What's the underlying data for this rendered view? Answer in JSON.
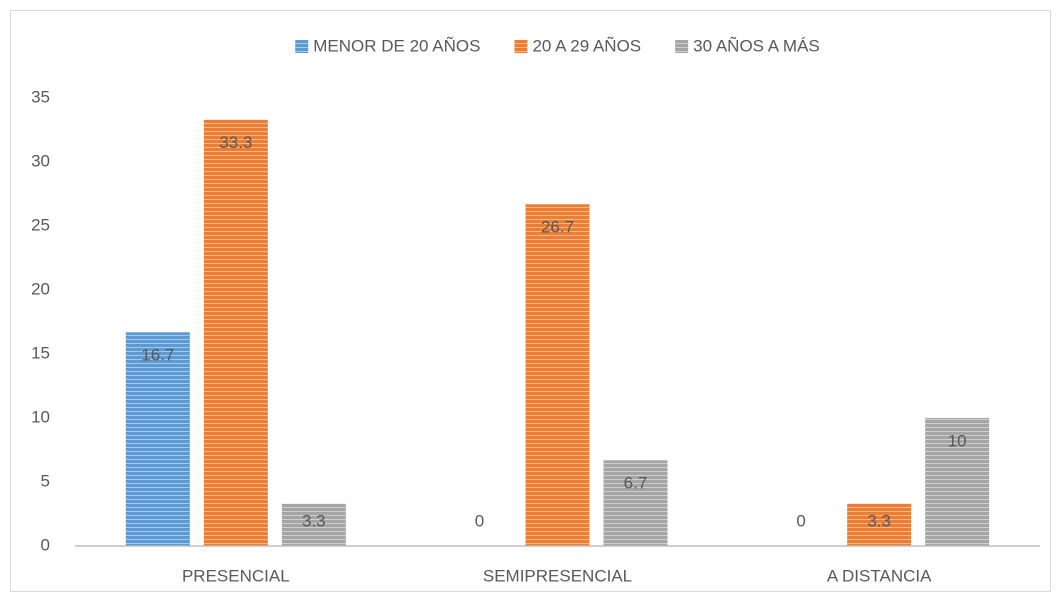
{
  "chart_data": {
    "type": "bar",
    "categories": [
      "PRESENCIAL",
      "SEMIPRESENCIAL",
      "A DISTANCIA"
    ],
    "series": [
      {
        "name": "MENOR DE 20 AÑOS",
        "color": "#5b9bd5",
        "values": [
          16.7,
          0,
          0
        ]
      },
      {
        "name": "20 A 29 AÑOS",
        "color": "#ed7d31",
        "values": [
          33.3,
          26.7,
          3.3
        ]
      },
      {
        "name": "30 AÑOS A MÁS",
        "color": "#a5a5a5",
        "values": [
          3.3,
          6.7,
          10
        ]
      }
    ],
    "ylim": [
      0,
      35
    ],
    "yticks": [
      0,
      5,
      10,
      15,
      20,
      25,
      30,
      35
    ],
    "grid": false,
    "legend": "top",
    "data_labels": true
  }
}
